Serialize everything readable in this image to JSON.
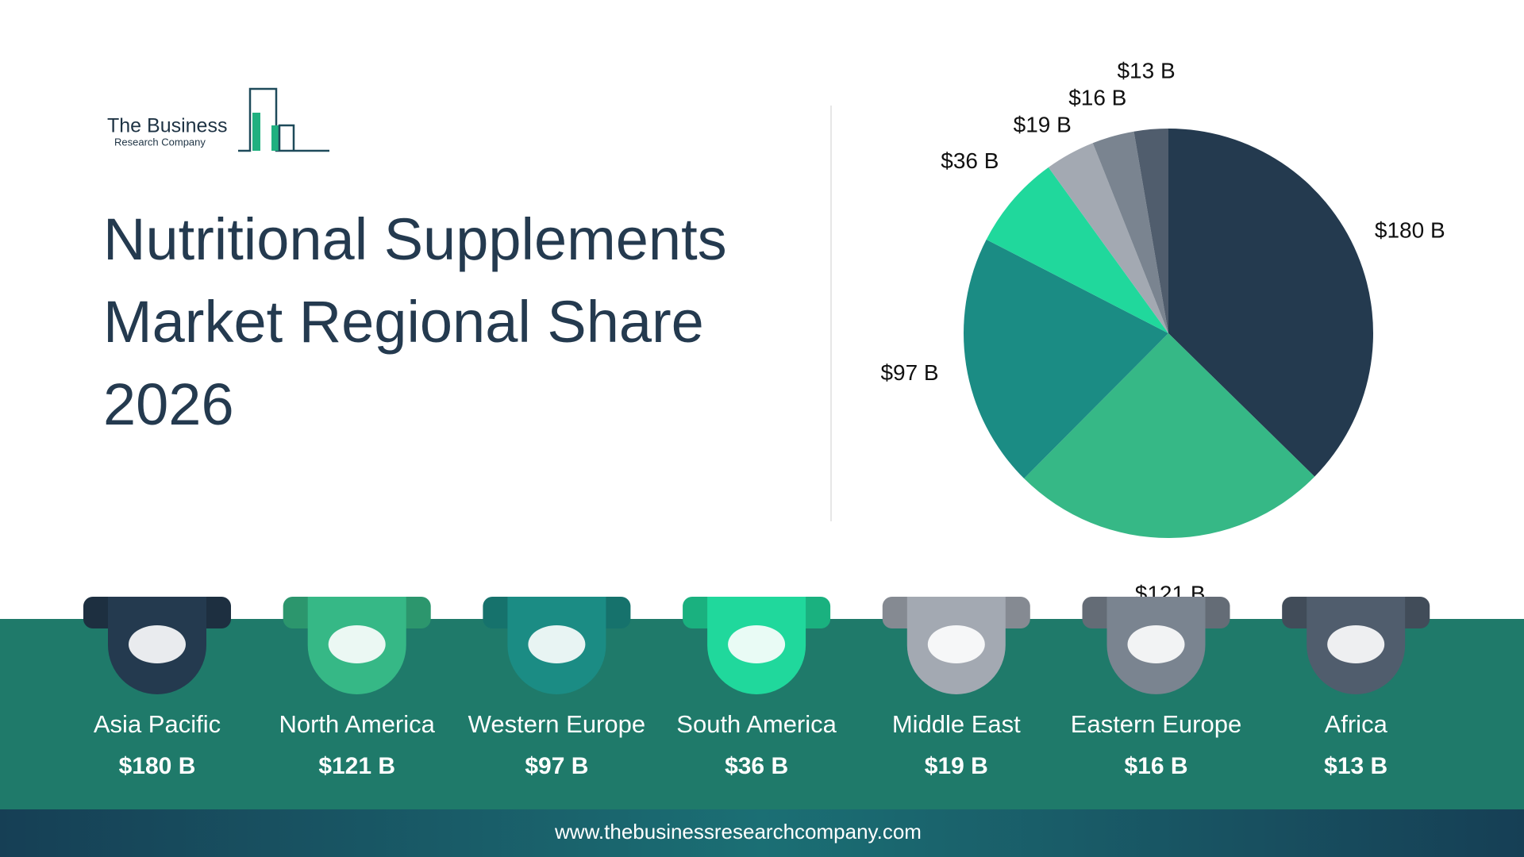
{
  "logo": {
    "line1": "The Business",
    "line2": "Research Company"
  },
  "chart_data": {
    "type": "pie",
    "title": "Nutritional Supplements Market Regional Share 2026",
    "categories": [
      "Asia Pacific",
      "North America",
      "Western Europe",
      "South America",
      "Middle East",
      "Eastern Europe",
      "Africa"
    ],
    "values": [
      180,
      121,
      97,
      36,
      19,
      16,
      13
    ],
    "value_labels": [
      "$180 B",
      "$121 B",
      "$97 B",
      "$36 B",
      "$19 B",
      "$16 B",
      "$13 B"
    ],
    "colors": [
      "#243a4f",
      "#36b886",
      "#1b8c84",
      "#20d89c",
      "#a3a9b2",
      "#7a8490",
      "#505d6d"
    ]
  },
  "footer": {
    "website": "www.thebusinessresearchcompany.com"
  }
}
